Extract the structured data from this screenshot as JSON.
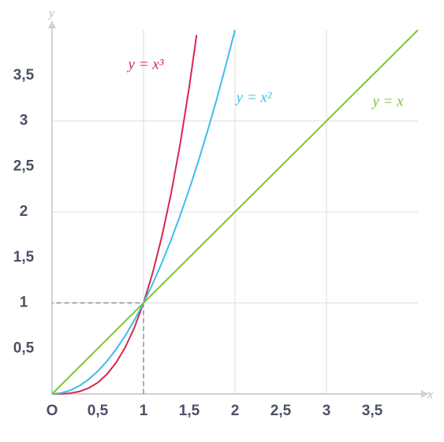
{
  "chart_data": {
    "type": "line",
    "xlabel": "x",
    "ylabel": "y",
    "xlim": [
      0,
      4
    ],
    "ylim": [
      0,
      4
    ],
    "xticks": [
      {
        "value": 0,
        "label": "O"
      },
      {
        "value": 0.5,
        "label": "0,5"
      },
      1,
      {
        "value": 1.5,
        "label": "1,5"
      },
      2,
      {
        "value": 2.5,
        "label": "2,5"
      },
      3,
      {
        "value": 3.5,
        "label": "3,5"
      }
    ],
    "yticks": [
      {
        "value": 0.5,
        "label": "0,5"
      },
      1,
      {
        "value": 1.5,
        "label": "1,5"
      },
      2,
      {
        "value": 2.5,
        "label": "2,5"
      },
      3,
      {
        "value": 3.5,
        "label": "3,5"
      }
    ],
    "grid": true,
    "reference_point": [
      1,
      1
    ],
    "series": [
      {
        "name": "y = x³",
        "color": "#d8264f",
        "x": [
          0,
          0.1,
          0.2,
          0.3,
          0.4,
          0.5,
          0.6,
          0.7,
          0.8,
          0.9,
          1,
          1.1,
          1.2,
          1.3,
          1.4,
          1.5,
          1.58
        ],
        "values": [
          0,
          0.001,
          0.008,
          0.027,
          0.064,
          0.125,
          0.216,
          0.343,
          0.512,
          0.729,
          1,
          1.331,
          1.728,
          2.197,
          2.744,
          3.375,
          3.944
        ]
      },
      {
        "name": "y = x²",
        "color": "#3dbdec",
        "x": [
          0,
          0.1,
          0.2,
          0.3,
          0.4,
          0.5,
          0.6,
          0.7,
          0.8,
          0.9,
          1,
          1.1,
          1.2,
          1.3,
          1.4,
          1.5,
          1.6,
          1.7,
          1.8,
          1.9,
          2
        ],
        "values": [
          0,
          0.01,
          0.04,
          0.09,
          0.16,
          0.25,
          0.36,
          0.49,
          0.64,
          0.81,
          1,
          1.21,
          1.44,
          1.69,
          1.96,
          2.25,
          2.56,
          2.89,
          3.24,
          3.61,
          4
        ]
      },
      {
        "name": "y = x",
        "color": "#7dc62d",
        "x": [
          0,
          4
        ],
        "values": [
          0,
          4
        ]
      }
    ]
  }
}
